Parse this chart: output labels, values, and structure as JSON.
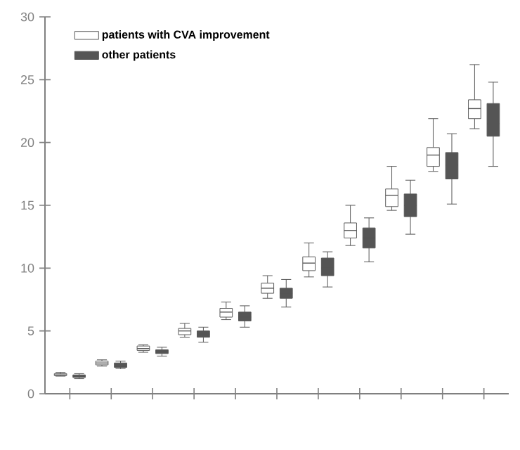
{
  "chart_data": {
    "type": "box",
    "categories": [
      null,
      null,
      null,
      null,
      null,
      null,
      null,
      null,
      null,
      null,
      null
    ],
    "ylim": [
      0,
      30
    ],
    "yticks": [
      0,
      5,
      10,
      15,
      20,
      25,
      30
    ],
    "tick_labels": "y",
    "legend": "top",
    "grid": false,
    "series": [
      {
        "name": "patients with CVA improvement",
        "color": "#ffffff",
        "boxes": [
          {
            "low": 1.4,
            "q1": 1.45,
            "median": 1.5,
            "q3": 1.6,
            "high": 1.7
          },
          {
            "low": 2.2,
            "q1": 2.3,
            "median": 2.45,
            "q3": 2.6,
            "high": 2.7
          },
          {
            "low": 3.3,
            "q1": 3.45,
            "median": 3.6,
            "q3": 3.8,
            "high": 3.9
          },
          {
            "low": 4.5,
            "q1": 4.7,
            "median": 5.0,
            "q3": 5.2,
            "high": 5.6
          },
          {
            "low": 5.9,
            "q1": 6.1,
            "median": 6.5,
            "q3": 6.8,
            "high": 7.3
          },
          {
            "low": 7.6,
            "q1": 8.0,
            "median": 8.4,
            "q3": 8.8,
            "high": 9.4
          },
          {
            "low": 9.3,
            "q1": 9.8,
            "median": 10.4,
            "q3": 10.9,
            "high": 12.0
          },
          {
            "low": 11.8,
            "q1": 12.4,
            "median": 13.0,
            "q3": 13.6,
            "high": 15.0
          },
          {
            "low": 14.6,
            "q1": 14.9,
            "median": 15.8,
            "q3": 16.3,
            "high": 18.1
          },
          {
            "low": 17.7,
            "q1": 18.1,
            "median": 19.0,
            "q3": 19.6,
            "high": 21.9
          },
          {
            "low": 21.1,
            "q1": 21.9,
            "median": 22.7,
            "q3": 23.4,
            "high": 26.2
          }
        ]
      },
      {
        "name": "other patients",
        "color": "#555555",
        "boxes": [
          {
            "low": 1.2,
            "q1": 1.3,
            "median": 1.4,
            "q3": 1.5,
            "high": 1.6
          },
          {
            "low": 2.0,
            "q1": 2.1,
            "median": 2.3,
            "q3": 2.45,
            "high": 2.6
          },
          {
            "low": 3.0,
            "q1": 3.2,
            "median": 3.35,
            "q3": 3.5,
            "high": 3.7
          },
          {
            "low": 4.1,
            "q1": 4.5,
            "median": 4.75,
            "q3": 5.0,
            "high": 5.3
          },
          {
            "low": 5.3,
            "q1": 5.8,
            "median": 6.1,
            "q3": 6.5,
            "high": 7.0
          },
          {
            "low": 6.9,
            "q1": 7.6,
            "median": 8.0,
            "q3": 8.4,
            "high": 9.1
          },
          {
            "low": 8.5,
            "q1": 9.4,
            "median": 10.0,
            "q3": 10.8,
            "high": 11.3
          },
          {
            "low": 10.5,
            "q1": 11.6,
            "median": 12.4,
            "q3": 13.2,
            "high": 14.0
          },
          {
            "low": 12.7,
            "q1": 14.1,
            "median": 15.0,
            "q3": 15.9,
            "high": 17.0
          },
          {
            "low": 15.1,
            "q1": 17.1,
            "median": 18.2,
            "q3": 19.2,
            "high": 20.7
          },
          {
            "low": 18.1,
            "q1": 20.5,
            "median": 21.5,
            "q3": 23.1,
            "high": 24.8
          }
        ]
      }
    ]
  }
}
